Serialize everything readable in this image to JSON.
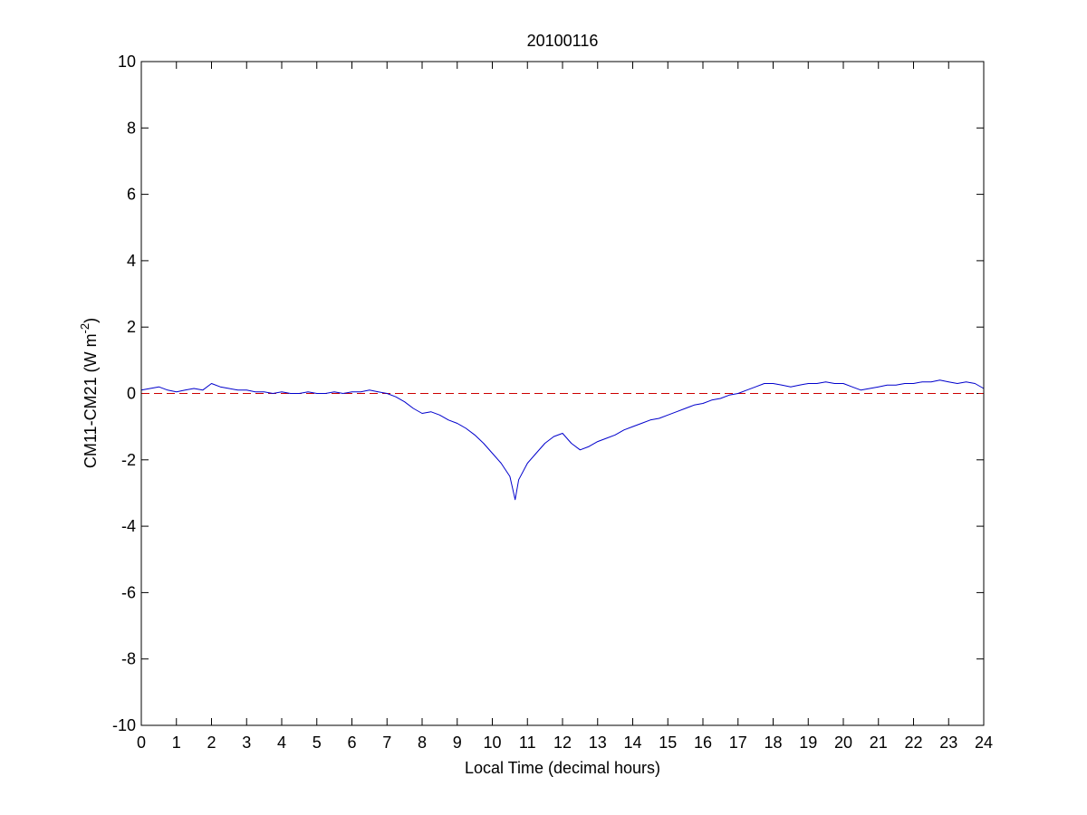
{
  "chart_data": {
    "type": "line",
    "title": "20100116",
    "xlabel": "Local Time (decimal hours)",
    "ylabel": "CM11-CM21 (W m",
    "ylabel_exponent": "-2",
    "ylabel_close": ")",
    "xlim": [
      0,
      24
    ],
    "ylim": [
      -10,
      10
    ],
    "xticks": [
      "0",
      "1",
      "2",
      "3",
      "4",
      "5",
      "6",
      "7",
      "8",
      "9",
      "10",
      "11",
      "12",
      "13",
      "14",
      "15",
      "16",
      "17",
      "18",
      "19",
      "20",
      "21",
      "22",
      "23",
      "24"
    ],
    "yticks": [
      "-10",
      "-8",
      "-6",
      "-4",
      "-2",
      "0",
      "2",
      "4",
      "6",
      "8",
      "10"
    ],
    "grid": false,
    "reference_line": {
      "y": 0,
      "color": "#cc0000",
      "style": "dashed"
    },
    "series": [
      {
        "color": "#0000cc",
        "x": [
          0,
          0.25,
          0.5,
          0.75,
          1,
          1.25,
          1.5,
          1.75,
          2,
          2.25,
          2.5,
          2.75,
          3,
          3.25,
          3.5,
          3.75,
          4,
          4.25,
          4.5,
          4.75,
          5,
          5.25,
          5.5,
          5.75,
          6,
          6.25,
          6.5,
          6.75,
          7,
          7.25,
          7.5,
          7.75,
          8,
          8.25,
          8.5,
          8.75,
          9,
          9.25,
          9.5,
          9.75,
          10,
          10.25,
          10.5,
          10.65,
          10.75,
          11,
          11.25,
          11.5,
          11.75,
          12,
          12.25,
          12.5,
          12.75,
          13,
          13.25,
          13.5,
          13.75,
          14,
          14.25,
          14.5,
          14.75,
          15,
          15.25,
          15.5,
          15.75,
          16,
          16.25,
          16.5,
          16.75,
          17,
          17.25,
          17.5,
          17.75,
          18,
          18.25,
          18.5,
          18.75,
          19,
          19.25,
          19.5,
          19.75,
          20,
          20.25,
          20.5,
          20.75,
          21,
          21.25,
          21.5,
          21.75,
          22,
          22.25,
          22.5,
          22.75,
          23,
          23.25,
          23.5,
          23.75,
          24
        ],
        "y": [
          0.1,
          0.15,
          0.2,
          0.1,
          0.05,
          0.1,
          0.15,
          0.1,
          0.3,
          0.2,
          0.15,
          0.1,
          0.1,
          0.05,
          0.05,
          0.0,
          0.05,
          0.0,
          0.0,
          0.05,
          0.0,
          0.0,
          0.05,
          0.0,
          0.05,
          0.05,
          0.1,
          0.05,
          0.0,
          -0.1,
          -0.25,
          -0.45,
          -0.6,
          -0.55,
          -0.65,
          -0.8,
          -0.9,
          -1.05,
          -1.25,
          -1.5,
          -1.8,
          -2.1,
          -2.5,
          -3.2,
          -2.6,
          -2.1,
          -1.8,
          -1.5,
          -1.3,
          -1.2,
          -1.5,
          -1.7,
          -1.6,
          -1.45,
          -1.35,
          -1.25,
          -1.1,
          -1.0,
          -0.9,
          -0.8,
          -0.75,
          -0.65,
          -0.55,
          -0.45,
          -0.35,
          -0.3,
          -0.2,
          -0.15,
          -0.05,
          0.0,
          0.1,
          0.2,
          0.3,
          0.3,
          0.25,
          0.2,
          0.25,
          0.3,
          0.3,
          0.35,
          0.3,
          0.3,
          0.2,
          0.1,
          0.15,
          0.2,
          0.25,
          0.25,
          0.3,
          0.3,
          0.35,
          0.35,
          0.4,
          0.35,
          0.3,
          0.35,
          0.3,
          0.15
        ]
      }
    ]
  }
}
